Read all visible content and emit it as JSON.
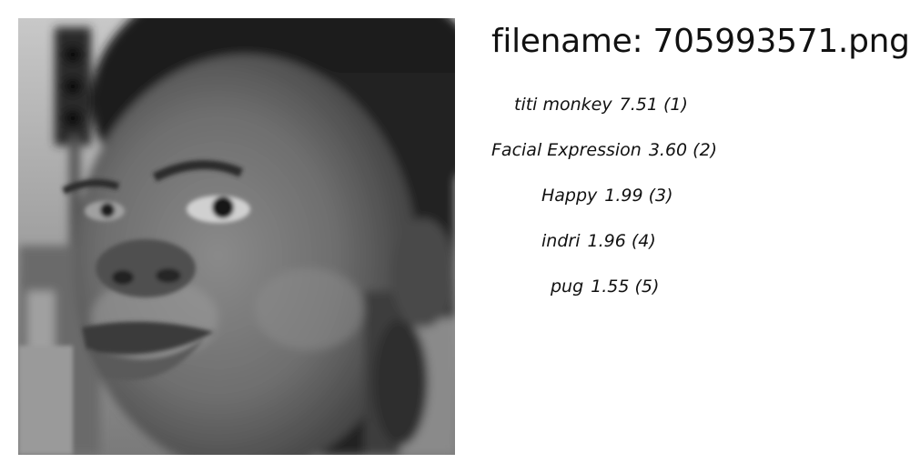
{
  "filename_text": "filename: 705993571.png",
  "image": {
    "description_icon": "grayscale-face-photo"
  },
  "predictions": [
    {
      "label": "titi monkey",
      "score": "7.51 (1)"
    },
    {
      "label": "Facial Expression",
      "score": "3.60 (2)"
    },
    {
      "label": "Happy",
      "score": "1.99 (3)"
    },
    {
      "label": "indri",
      "score": "1.96 (4)"
    },
    {
      "label": "pug",
      "score": "1.55 (5)"
    }
  ]
}
